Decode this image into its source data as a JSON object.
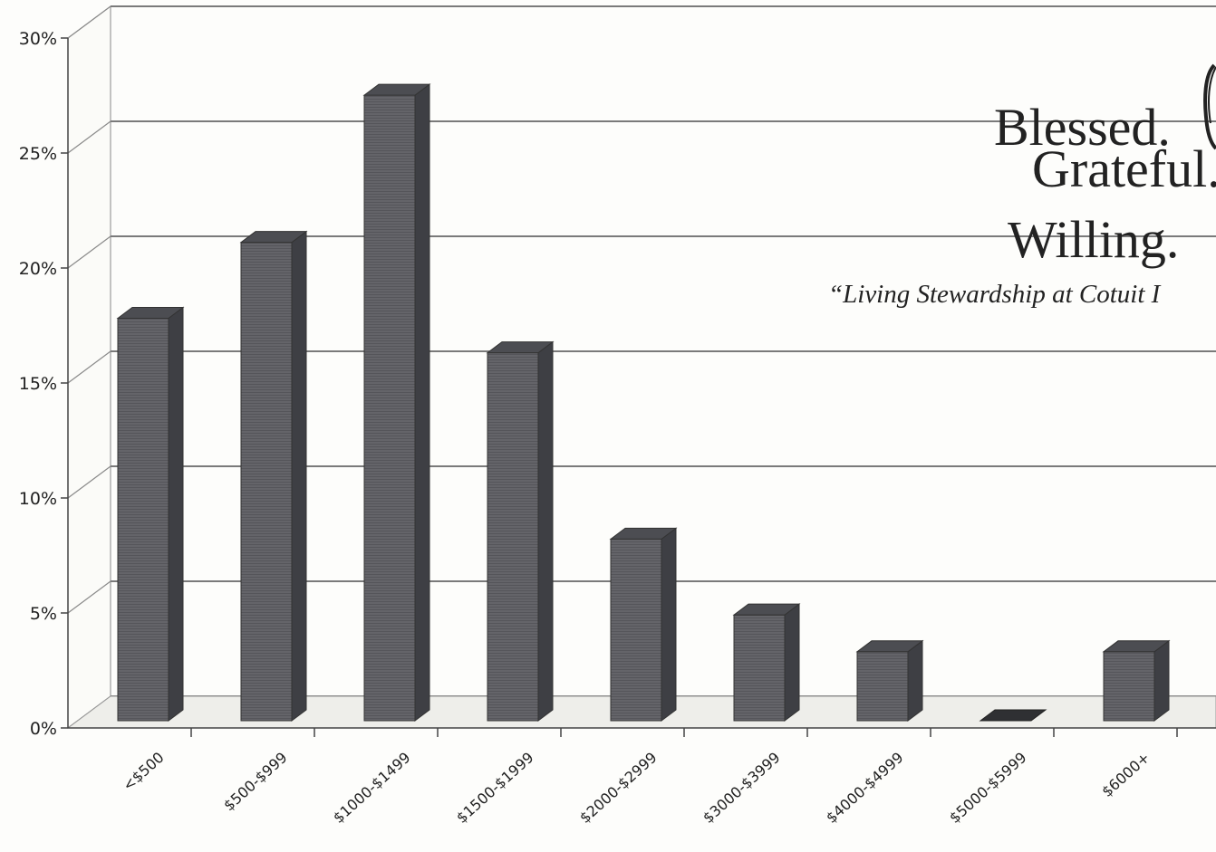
{
  "chart_data": {
    "type": "bar",
    "categories": [
      "<$500",
      "$500-$999",
      "$1000-$1499",
      "$1500-$1999",
      "$2000-$2999",
      "$3000-$3999",
      "$4000-$4999",
      "$5000-$5999",
      "$6000+"
    ],
    "values": [
      17.5,
      20.8,
      27.2,
      16.0,
      7.9,
      4.6,
      3.0,
      0,
      3.0
    ],
    "y_tick_labels": [
      "0%",
      "5%",
      "10%",
      "15%",
      "20%",
      "25%",
      "30%"
    ],
    "ylim": [
      0,
      30
    ],
    "value_unit": "%",
    "grid": true,
    "style": "3d-column",
    "bar_color": "#5f5f64"
  },
  "overlay": {
    "line1": "Blessed.",
    "line2": "Grateful.",
    "line3": "Willing.",
    "tagline": "“Living Stewardship at Cotuit I"
  }
}
